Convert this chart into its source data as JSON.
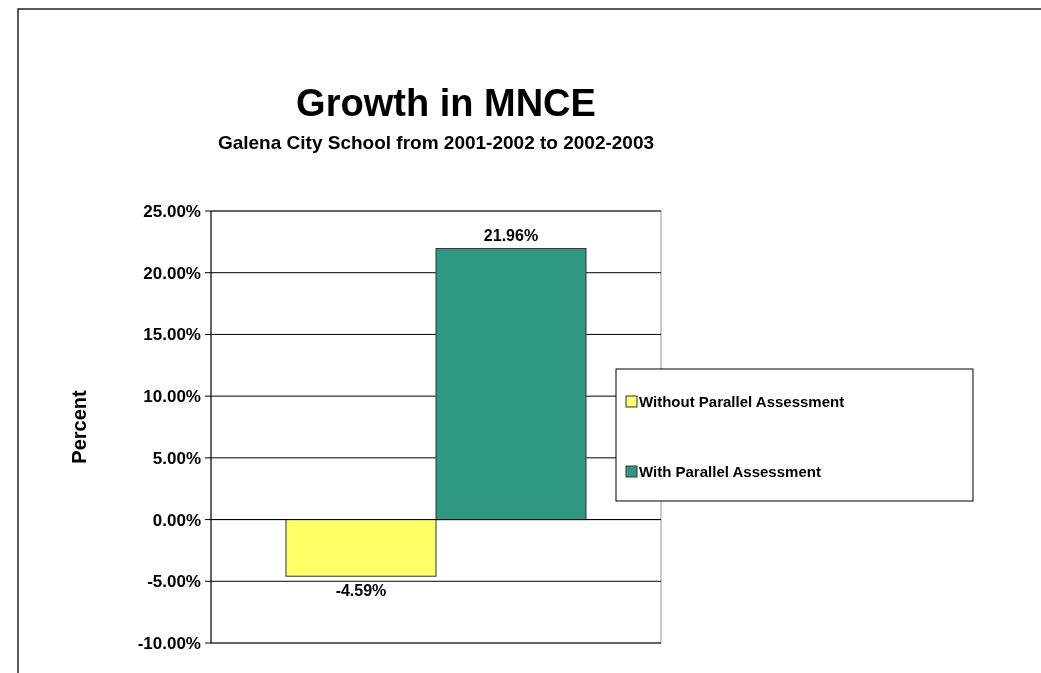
{
  "chart_data": {
    "type": "bar",
    "title": "Growth in MNCE",
    "subtitle": "Galena City School from 2001-2002 to 2002-2003",
    "ylabel": "Percent",
    "categories": [
      null
    ],
    "series": [
      {
        "name": "Without Parallel Assessment",
        "color": "#ffff66",
        "values": [
          -4.59
        ],
        "value_labels": [
          "-4.59%"
        ]
      },
      {
        "name": "With Parallel Assessment",
        "color": "#2e9980",
        "values": [
          21.96
        ],
        "value_labels": [
          "21.96%"
        ]
      }
    ],
    "ylim": [
      -10,
      25
    ],
    "yticks": [
      {
        "value": -10,
        "label": "-10.00%"
      },
      {
        "value": -5,
        "label": "-5.00%"
      },
      {
        "value": 0,
        "label": "0.00%"
      },
      {
        "value": 5,
        "label": "5.00%"
      },
      {
        "value": 10,
        "label": "10.00%"
      },
      {
        "value": 15,
        "label": "15.00%"
      },
      {
        "value": 20,
        "label": "20.00%"
      },
      {
        "value": 25,
        "label": "25.00%"
      }
    ],
    "grid": "y",
    "legend": "right"
  }
}
